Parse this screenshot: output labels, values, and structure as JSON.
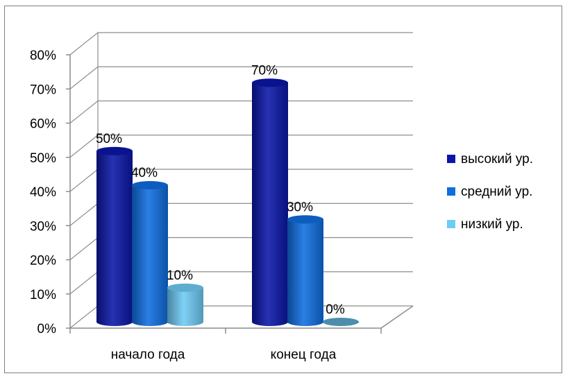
{
  "chart_data": {
    "type": "bar",
    "variant": "3d-cylinder",
    "title": "",
    "xlabel": "",
    "ylabel": "",
    "categories": [
      "начало года",
      "конец года"
    ],
    "series": [
      {
        "name": "высокий ур.",
        "values": [
          50,
          70
        ],
        "labels": [
          "50%",
          "70%"
        ],
        "color": "#0a16a8"
      },
      {
        "name": "средний ур.",
        "values": [
          40,
          30
        ],
        "labels": [
          "40%",
          "30%"
        ],
        "color": "#0f6de0"
      },
      {
        "name": "низкий ур.",
        "values": [
          10,
          0
        ],
        "labels": [
          "10%",
          "0%"
        ],
        "color": "#6ecbf5"
      }
    ],
    "y_ticks": [
      "0%",
      "10%",
      "20%",
      "30%",
      "40%",
      "50%",
      "60%",
      "70%",
      "80%"
    ],
    "ylim": [
      0,
      80
    ],
    "grid": true,
    "legend_position": "right"
  }
}
